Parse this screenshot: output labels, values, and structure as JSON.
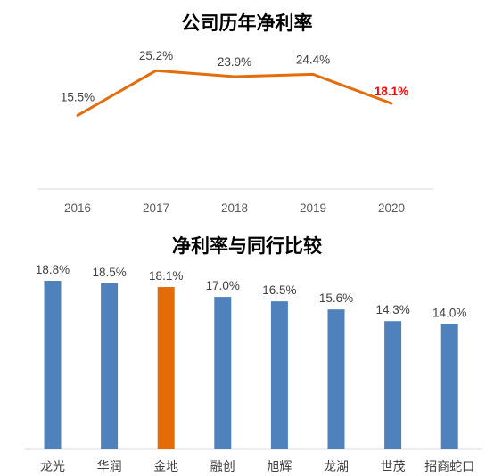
{
  "chart_data": [
    {
      "type": "line",
      "title": "公司历年净利率",
      "categories": [
        "2016",
        "2017",
        "2018",
        "2019",
        "2020"
      ],
      "values": [
        15.5,
        25.2,
        23.9,
        24.4,
        18.1
      ],
      "data_labels": [
        "15.5%",
        "25.2%",
        "23.9%",
        "24.4%",
        "18.1%"
      ],
      "highlight_index": 4,
      "colors": {
        "line": "#E46C0A",
        "highlight_label": "#FF0000",
        "label": "#404040",
        "axis": "#D9D9D9"
      },
      "xlabel": "",
      "ylabel": "",
      "grid": false
    },
    {
      "type": "bar",
      "title": "净利率与同行比较",
      "categories": [
        "龙光",
        "华润",
        "金地",
        "融创",
        "旭辉",
        "龙湖",
        "世茂",
        "招商蛇口"
      ],
      "values": [
        18.8,
        18.5,
        18.1,
        17.0,
        16.5,
        15.6,
        14.3,
        14.0
      ],
      "data_labels": [
        "18.8%",
        "18.5%",
        "18.1%",
        "17.0%",
        "16.5%",
        "15.6%",
        "14.3%",
        "14.0%"
      ],
      "highlight_index": 2,
      "colors": {
        "bar": "#4F81BD",
        "highlight": "#E36C09",
        "axis": "#D9D9D9"
      },
      "xlabel": "",
      "ylabel": "",
      "grid": false
    }
  ]
}
